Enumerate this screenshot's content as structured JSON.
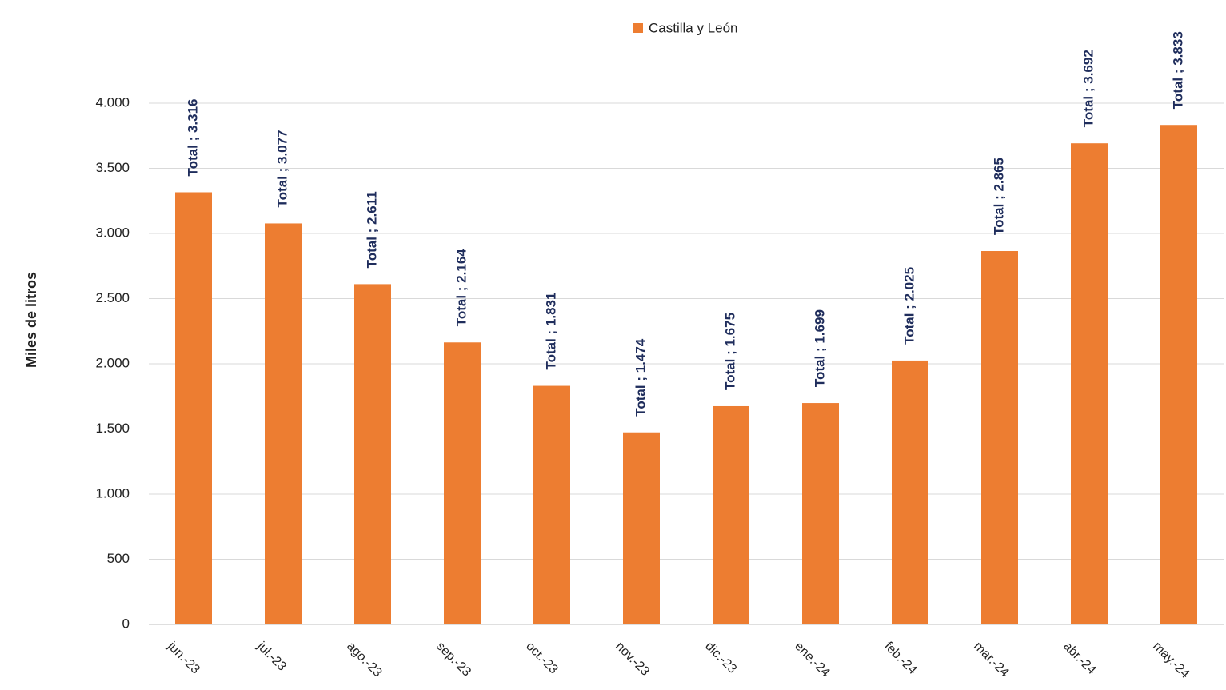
{
  "chart_data": {
    "type": "bar",
    "y_label": "Miles de litros",
    "legend": "Castilla y León",
    "color": "#ed7d31",
    "categories": [
      "jun.-23",
      "jul.-23",
      "ago.-23",
      "sep.-23",
      "oct.-23",
      "nov.-23",
      "dic.-23",
      "ene.-24",
      "feb.-24",
      "mar.-24",
      "abr.-24",
      "may.-24"
    ],
    "values": [
      3316,
      3077,
      2611,
      2164,
      1831,
      1474,
      1675,
      1699,
      2025,
      2865,
      3692,
      3833
    ],
    "value_labels": [
      "Total ; 3.316",
      "Total ; 3.077",
      "Total ; 2.611",
      "Total ; 2.164",
      "Total ; 1.831",
      "Total ; 1.474",
      "Total ; 1.675",
      "Total ; 1.699",
      "Total ; 2.025",
      "Total ; 2.865",
      "Total ; 3.692",
      "Total ; 3.833"
    ],
    "ylim": [
      0,
      4000
    ],
    "yticks": [
      0,
      500,
      {
        "value": 1000,
        "label": "1.000"
      },
      {
        "value": 1500,
        "label": "1.500"
      },
      {
        "value": 2000,
        "label": "2.000"
      },
      {
        "value": 2500,
        "label": "2.500"
      },
      {
        "value": 3000,
        "label": "3.000"
      },
      {
        "value": 3500,
        "label": "3.500"
      },
      {
        "value": 4000,
        "label": "4.000"
      }
    ],
    "grid": true
  }
}
